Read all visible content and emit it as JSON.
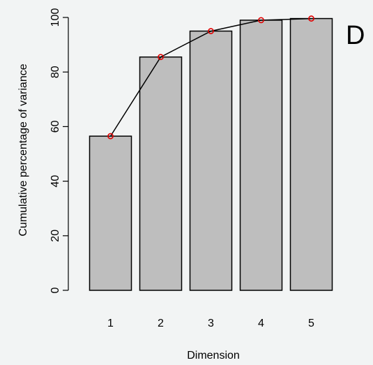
{
  "chart_data": {
    "type": "bar",
    "categories": [
      "1",
      "2",
      "3",
      "4",
      "5"
    ],
    "values": [
      56.5,
      85.5,
      95.0,
      99.0,
      99.6
    ],
    "overlay_line": {
      "type": "line",
      "x": [
        "1",
        "2",
        "3",
        "4",
        "5"
      ],
      "values": [
        56.5,
        85.5,
        95.0,
        99.0,
        99.6
      ],
      "point_color": "#e00000"
    },
    "xlabel": "Dimension",
    "ylabel": "Cumulative percentage of variance",
    "yticks": [
      "0",
      "20",
      "40",
      "60",
      "80",
      "100"
    ],
    "ylim": [
      0,
      100
    ],
    "grid": false,
    "bar_color": "#bebebe",
    "panel_label": "D"
  }
}
